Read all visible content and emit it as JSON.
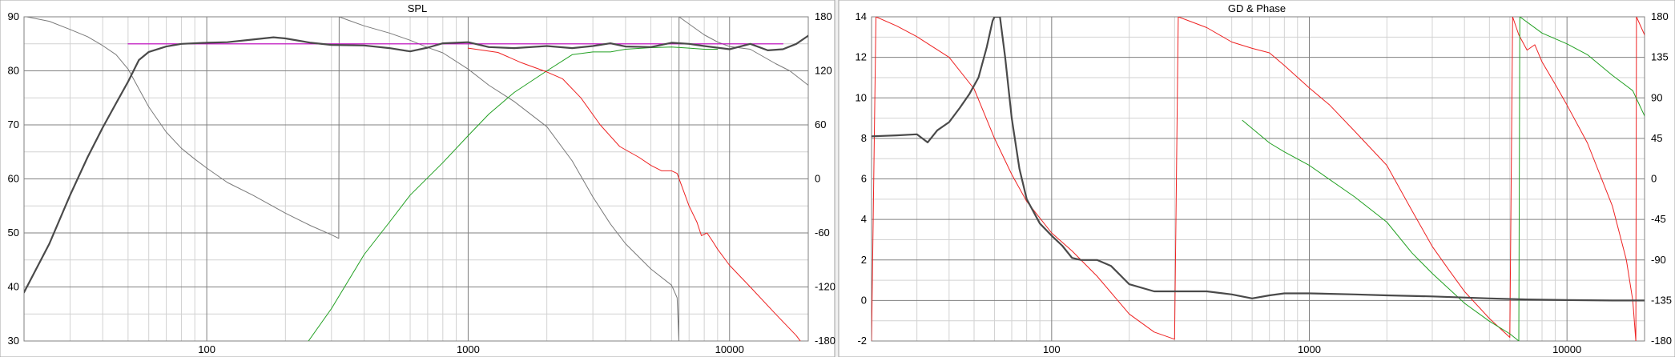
{
  "chart_data": [
    {
      "type": "line",
      "title": "SPL",
      "x_scale": "log",
      "xlim": [
        20,
        20000
      ],
      "x_ticks": [
        100,
        1000,
        10000
      ],
      "x_tick_labels": [
        "100",
        "1000",
        "10000"
      ],
      "ylim": [
        30,
        90
      ],
      "y_ticks": [
        30,
        40,
        50,
        60,
        70,
        80,
        90
      ],
      "y_tick_labels": [
        "30",
        "40",
        "50",
        "60",
        "70",
        "80",
        "90"
      ],
      "y2lim": [
        -180,
        180
      ],
      "y2_ticks": [
        -180,
        -120,
        -60,
        0,
        60,
        120,
        180
      ],
      "y2_tick_labels": [
        "-180",
        "-120",
        "-60",
        "0",
        "60",
        "120",
        "180"
      ],
      "grid": true,
      "series": [
        {
          "color": "#7a7a7a",
          "width": 1,
          "axis": "right",
          "wrap": true,
          "points": [
            [
              20.5,
              180
            ],
            [
              25,
              175
            ],
            [
              30,
              166
            ],
            [
              35,
              158
            ],
            [
              40,
              148
            ],
            [
              45,
              138
            ],
            [
              50,
              122
            ],
            [
              55,
              100
            ],
            [
              60,
              80
            ],
            [
              70,
              52
            ],
            [
              80,
              34
            ],
            [
              90,
              22
            ],
            [
              100,
              12
            ],
            [
              120,
              -4
            ],
            [
              150,
              -18
            ],
            [
              200,
              -38
            ],
            [
              250,
              -52
            ],
            [
              300,
              -62
            ],
            [
              320,
              -66
            ],
            [
              321,
              180
            ],
            [
              350,
              176
            ],
            [
              400,
              170
            ],
            [
              500,
              162
            ],
            [
              600,
              154
            ],
            [
              700,
              146
            ],
            [
              800,
              140
            ],
            [
              1000,
              122
            ],
            [
              1200,
              104
            ],
            [
              1500,
              86
            ],
            [
              2000,
              58
            ],
            [
              2500,
              20
            ],
            [
              3000,
              -20
            ],
            [
              3500,
              -50
            ],
            [
              4000,
              -72
            ],
            [
              5000,
              -100
            ],
            [
              6000,
              -118
            ],
            [
              6300,
              -132
            ],
            [
              6400,
              -180
            ],
            [
              6410,
              180
            ],
            [
              7000,
              172
            ],
            [
              8000,
              160
            ],
            [
              9000,
              152
            ],
            [
              10000,
              147
            ],
            [
              12000,
              144
            ],
            [
              15000,
              128
            ],
            [
              17000,
              120
            ],
            [
              20000,
              104
            ]
          ]
        },
        {
          "color": "#22a022",
          "width": 1,
          "axis": "left",
          "points": [
            [
              245,
              30
            ],
            [
              300,
              36
            ],
            [
              400,
              46
            ],
            [
              500,
              52
            ],
            [
              600,
              57
            ],
            [
              800,
              63
            ],
            [
              1000,
              68
            ],
            [
              1200,
              72
            ],
            [
              1500,
              76
            ],
            [
              2000,
              80
            ],
            [
              2500,
              83
            ],
            [
              3000,
              83.5
            ],
            [
              3500,
              83.5
            ],
            [
              4000,
              84
            ],
            [
              5000,
              84.3
            ],
            [
              6000,
              84.4
            ],
            [
              7000,
              84.2
            ],
            [
              8000,
              84
            ],
            [
              9000,
              84
            ]
          ]
        },
        {
          "color": "#ee2222",
          "width": 1,
          "axis": "left",
          "points": [
            [
              1000,
              84.2
            ],
            [
              1300,
              83.4
            ],
            [
              1600,
              81.5
            ],
            [
              2000,
              79.8
            ],
            [
              2300,
              78.5
            ],
            [
              2700,
              75
            ],
            [
              3200,
              70
            ],
            [
              3800,
              66
            ],
            [
              4500,
              64
            ],
            [
              5000,
              62.5
            ],
            [
              5500,
              61.5
            ],
            [
              6000,
              61.5
            ],
            [
              6300,
              61
            ],
            [
              7000,
              55
            ],
            [
              7500,
              52
            ],
            [
              7800,
              49.5
            ],
            [
              8200,
              50
            ],
            [
              8600,
              48.5
            ],
            [
              9000,
              47
            ],
            [
              10000,
              44
            ],
            [
              12000,
              40
            ],
            [
              15000,
              35
            ],
            [
              18000,
              31
            ],
            [
              20000,
              28
            ]
          ]
        },
        {
          "color": "#c000c0",
          "width": 1.2,
          "axis": "left",
          "points": [
            [
              50,
              85
            ],
            [
              16000,
              85
            ]
          ]
        },
        {
          "color": "#4a4a4a",
          "width": 2.2,
          "axis": "left",
          "points": [
            [
              20,
              39
            ],
            [
              25,
              48
            ],
            [
              30,
              57
            ],
            [
              35,
              64
            ],
            [
              40,
              69.5
            ],
            [
              45,
              74
            ],
            [
              50,
              78
            ],
            [
              55,
              82
            ],
            [
              60,
              83.5
            ],
            [
              70,
              84.5
            ],
            [
              80,
              85
            ],
            [
              100,
              85.2
            ],
            [
              120,
              85.3
            ],
            [
              150,
              85.8
            ],
            [
              180,
              86.2
            ],
            [
              200,
              86
            ],
            [
              250,
              85.2
            ],
            [
              300,
              84.8
            ],
            [
              400,
              84.7
            ],
            [
              500,
              84.2
            ],
            [
              600,
              83.6
            ],
            [
              700,
              84.3
            ],
            [
              800,
              85.1
            ],
            [
              1000,
              85.3
            ],
            [
              1200,
              84.4
            ],
            [
              1500,
              84.2
            ],
            [
              2000,
              84.6
            ],
            [
              2500,
              84.2
            ],
            [
              3000,
              84.6
            ],
            [
              3500,
              85.1
            ],
            [
              4000,
              84.5
            ],
            [
              5000,
              84.4
            ],
            [
              6000,
              85.2
            ],
            [
              7000,
              85
            ],
            [
              8000,
              84.6
            ],
            [
              10000,
              84
            ],
            [
              12000,
              85
            ],
            [
              14000,
              83.8
            ],
            [
              16000,
              84
            ],
            [
              18000,
              85
            ],
            [
              20000,
              86.5
            ]
          ]
        }
      ]
    },
    {
      "type": "line",
      "title": "GD & Phase",
      "x_scale": "log",
      "xlim": [
        20,
        20000
      ],
      "x_ticks": [
        100,
        1000,
        10000
      ],
      "x_tick_labels": [
        "100",
        "1000",
        "10000"
      ],
      "ylim": [
        -2,
        14
      ],
      "y_ticks": [
        -2,
        0,
        2,
        4,
        6,
        8,
        10,
        12,
        14
      ],
      "y_tick_labels": [
        "-2",
        "0",
        "2",
        "4",
        "6",
        "8",
        "10",
        "12",
        "14"
      ],
      "y2lim": [
        -180,
        180
      ],
      "y2_ticks": [
        -180,
        -135,
        -90,
        -45,
        0,
        45,
        90,
        135,
        180
      ],
      "y2_tick_labels": [
        "-180",
        "-135",
        "-90",
        "-45",
        "0",
        "45",
        "90",
        "135",
        "180"
      ],
      "grid": true,
      "series": [
        {
          "color": "#ee2222",
          "width": 1,
          "axis": "right",
          "wrap": true,
          "points": [
            [
              20,
              -180
            ],
            [
              20.8,
              180
            ],
            [
              25,
              170
            ],
            [
              30,
              158
            ],
            [
              40,
              135
            ],
            [
              50,
              100
            ],
            [
              60,
              45
            ],
            [
              70,
              5
            ],
            [
              80,
              -25
            ],
            [
              100,
              -60
            ],
            [
              120,
              -80
            ],
            [
              150,
              -108
            ],
            [
              200,
              -150
            ],
            [
              250,
              -170
            ],
            [
              300,
              -178
            ],
            [
              310,
              180
            ],
            [
              400,
              168
            ],
            [
              500,
              152
            ],
            [
              600,
              145
            ],
            [
              700,
              140
            ],
            [
              800,
              126
            ],
            [
              1000,
              101
            ],
            [
              1200,
              82
            ],
            [
              1500,
              53
            ],
            [
              2000,
              15
            ],
            [
              2500,
              -35
            ],
            [
              3000,
              -75
            ],
            [
              3500,
              -102
            ],
            [
              4000,
              -125
            ],
            [
              5000,
              -155
            ],
            [
              6000,
              -176
            ],
            [
              6150,
              180
            ],
            [
              6500,
              160
            ],
            [
              7000,
              143
            ],
            [
              7500,
              149
            ],
            [
              8000,
              130
            ],
            [
              9000,
              105
            ],
            [
              10000,
              82
            ],
            [
              12000,
              40
            ],
            [
              15000,
              -30
            ],
            [
              17000,
              -90
            ],
            [
              18000,
              -135
            ],
            [
              18500,
              -180
            ],
            [
              18600,
              180
            ],
            [
              20000,
              160
            ]
          ]
        },
        {
          "color": "#22a022",
          "width": 1,
          "axis": "right",
          "wrap": true,
          "points": [
            [
              550,
              65
            ],
            [
              700,
              40
            ],
            [
              800,
              30
            ],
            [
              1000,
              15
            ],
            [
              1500,
              -20
            ],
            [
              2000,
              -48
            ],
            [
              2500,
              -82
            ],
            [
              3000,
              -105
            ],
            [
              4000,
              -138
            ],
            [
              5000,
              -158
            ],
            [
              6000,
              -172
            ],
            [
              6500,
              -180
            ],
            [
              6560,
              180
            ],
            [
              8000,
              162
            ],
            [
              10000,
              150
            ],
            [
              12000,
              138
            ],
            [
              15000,
              115
            ],
            [
              18000,
              98
            ],
            [
              20000,
              70
            ]
          ]
        },
        {
          "color": "#4a4a4a",
          "width": 2.2,
          "axis": "left",
          "points": [
            [
              20,
              8.1
            ],
            [
              25,
              8.15
            ],
            [
              30,
              8.2
            ],
            [
              33,
              7.8
            ],
            [
              36,
              8.4
            ],
            [
              40,
              8.8
            ],
            [
              44,
              9.5
            ],
            [
              48,
              10.2
            ],
            [
              52,
              11
            ],
            [
              56,
              12.5
            ],
            [
              59,
              13.8
            ],
            [
              60,
              14
            ],
            [
              63,
              14
            ],
            [
              66,
              12
            ],
            [
              70,
              9
            ],
            [
              75,
              6.5
            ],
            [
              80,
              5
            ],
            [
              90,
              3.8
            ],
            [
              100,
              3.2
            ],
            [
              110,
              2.7
            ],
            [
              120,
              2.1
            ],
            [
              130,
              2
            ],
            [
              150,
              2
            ],
            [
              170,
              1.7
            ],
            [
              200,
              0.8
            ],
            [
              250,
              0.45
            ],
            [
              300,
              0.45
            ],
            [
              400,
              0.45
            ],
            [
              500,
              0.3
            ],
            [
              600,
              0.1
            ],
            [
              700,
              0.25
            ],
            [
              800,
              0.35
            ],
            [
              1000,
              0.35
            ],
            [
              1500,
              0.3
            ],
            [
              2000,
              0.25
            ],
            [
              3000,
              0.2
            ],
            [
              5000,
              0.1
            ],
            [
              7000,
              0.05
            ],
            [
              10000,
              0.02
            ],
            [
              15000,
              0
            ],
            [
              20000,
              0
            ]
          ]
        }
      ]
    }
  ]
}
